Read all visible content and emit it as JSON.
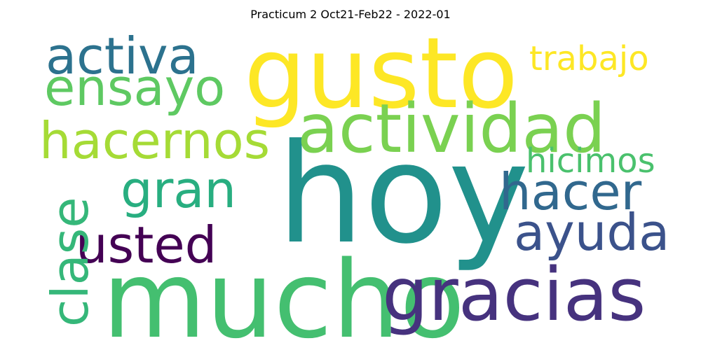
{
  "title": "Practicum 2 Oct21-Feb22 - 2022-01",
  "words": [
    {
      "text": "hoy",
      "color": "#21918c"
    },
    {
      "text": "mucho",
      "color": "#44bf70"
    },
    {
      "text": "gracias",
      "color": "#46327e"
    },
    {
      "text": "gusto",
      "color": "#fde725"
    },
    {
      "text": "actividad",
      "color": "#7ad151"
    },
    {
      "text": "activa",
      "color": "#2c728e"
    },
    {
      "text": "ensayo",
      "color": "#5ec962"
    },
    {
      "text": "hacernos",
      "color": "#a5db36"
    },
    {
      "text": "gran",
      "color": "#28ae80"
    },
    {
      "text": "usted",
      "color": "#440154"
    },
    {
      "text": "clase",
      "color": "#35b779"
    },
    {
      "text": "hacer",
      "color": "#31688e"
    },
    {
      "text": "ayuda",
      "color": "#3b528b"
    },
    {
      "text": "hicimos",
      "color": "#4ac16d"
    },
    {
      "text": "trabajo",
      "color": "#fde725"
    }
  ]
}
